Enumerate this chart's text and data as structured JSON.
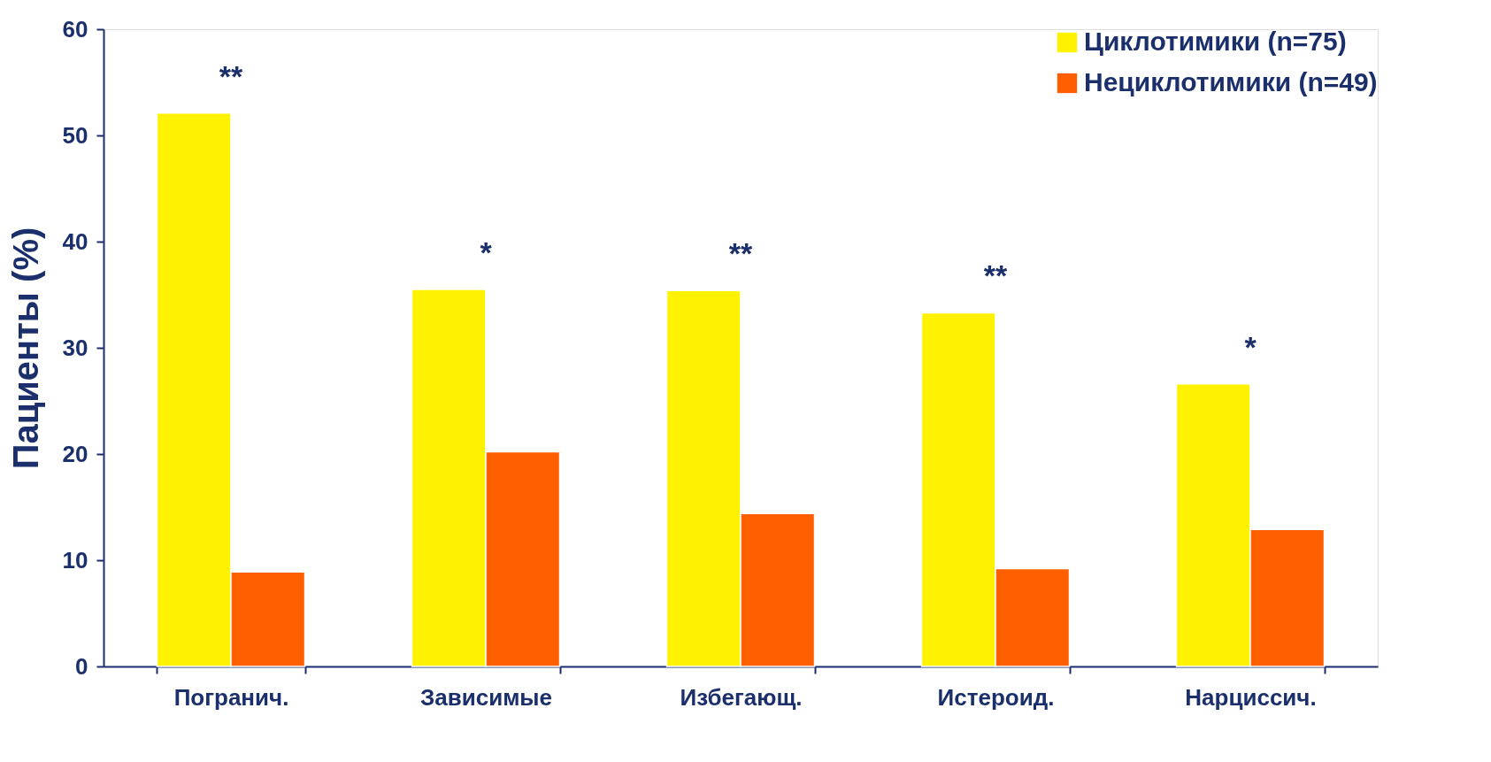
{
  "chart_data": {
    "type": "bar",
    "ylabel": "Пациенты (%)",
    "categories": [
      "Погранич.",
      "Зависимые",
      "Избегающ.",
      "Истероид.",
      "Нарциссич."
    ],
    "series": [
      {
        "name": "Циклотимики (n=75)",
        "color": "#fff200",
        "values": [
          52.1,
          35.5,
          35.4,
          33.3,
          26.6
        ]
      },
      {
        "name": "Нециклотимики (n=49)",
        "color": "#ff5f00",
        "values": [
          8.9,
          20.2,
          14.4,
          9.2,
          12.9
        ]
      }
    ],
    "ylim": [
      0,
      60
    ],
    "yticks": [
      0,
      10,
      20,
      30,
      40,
      50,
      60
    ],
    "grid": false,
    "legend": "top right",
    "annotations": [
      "**",
      "*",
      "**",
      "**",
      "*"
    ]
  }
}
